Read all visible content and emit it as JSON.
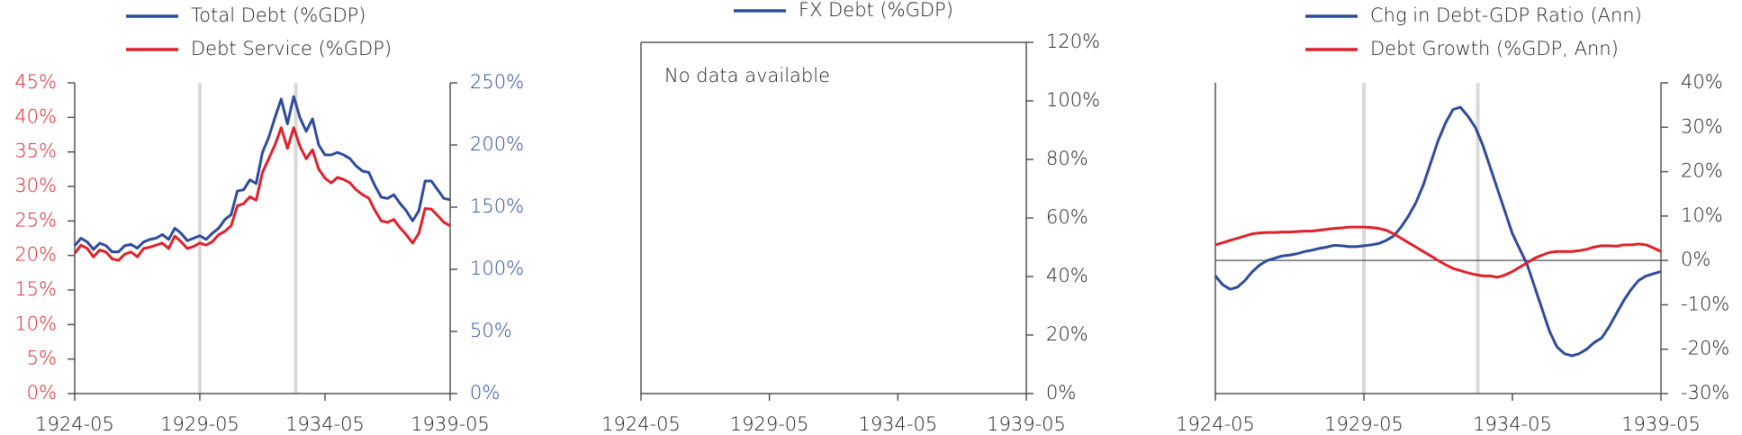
{
  "chart_data": [
    {
      "type": "line",
      "x": [
        "1924-05",
        "1924-08",
        "1924-11",
        "1925-02",
        "1925-05",
        "1925-08",
        "1925-11",
        "1926-02",
        "1926-05",
        "1926-08",
        "1926-11",
        "1927-02",
        "1927-05",
        "1927-08",
        "1927-11",
        "1928-02",
        "1928-05",
        "1928-08",
        "1928-11",
        "1929-02",
        "1929-05",
        "1929-08",
        "1929-11",
        "1930-02",
        "1930-05",
        "1930-08",
        "1930-11",
        "1931-02",
        "1931-05",
        "1931-08",
        "1931-11",
        "1932-02",
        "1932-05",
        "1932-08",
        "1932-11",
        "1933-02",
        "1933-05",
        "1933-08",
        "1933-11",
        "1934-02",
        "1934-05",
        "1934-08",
        "1934-11",
        "1935-02",
        "1935-05",
        "1935-08",
        "1935-11",
        "1936-02",
        "1936-05",
        "1936-08",
        "1936-11",
        "1937-02",
        "1937-05",
        "1937-08",
        "1937-11",
        "1938-02",
        "1938-05",
        "1938-08",
        "1938-11",
        "1939-02",
        "1939-05"
      ],
      "series": [
        {
          "name": "Total Debt (%GDP)",
          "color": "#2e4a9e",
          "axis": "y2",
          "values": [
            119,
            125,
            122,
            116,
            121,
            119,
            114,
            114,
            119,
            120,
            117,
            122,
            124,
            125,
            128,
            124,
            133,
            129,
            123,
            125,
            127,
            124,
            129,
            133,
            140,
            144,
            163,
            164,
            172,
            169,
            194,
            206,
            222,
            237,
            217,
            239,
            222,
            211,
            221,
            200,
            192,
            192,
            194,
            192,
            189,
            183,
            179,
            178,
            167,
            158,
            157,
            160,
            153,
            147,
            139,
            147,
            171,
            171,
            164,
            157,
            156
          ]
        },
        {
          "name": "Debt Service (%GDP)",
          "color": "#e0202a",
          "axis": "y",
          "values": [
            20.3,
            21.5,
            21,
            19.8,
            20.8,
            20.5,
            19.5,
            19.3,
            20.2,
            20.5,
            19.8,
            21,
            21.2,
            21.5,
            21.8,
            21,
            22.8,
            22,
            21,
            21.3,
            21.8,
            21.5,
            22,
            23,
            23.5,
            24.3,
            27.2,
            27.5,
            28.5,
            28,
            32,
            34,
            36,
            38.5,
            35.5,
            38.5,
            35.8,
            34,
            35.3,
            32.5,
            31.2,
            30.5,
            31.3,
            31,
            30.5,
            29.5,
            28.8,
            28.3,
            26.5,
            25,
            24.8,
            25.2,
            24,
            23,
            21.8,
            23.2,
            26.8,
            26.7,
            25.8,
            24.8,
            24.3
          ]
        }
      ],
      "xlim": [
        "1924-05",
        "1939-05"
      ],
      "xticks": [
        "1924-05",
        "1929-05",
        "1934-05",
        "1939-05"
      ],
      "ylim": [
        0,
        45
      ],
      "yticks": [
        {
          "value": 0,
          "label": "0%"
        },
        {
          "value": 5,
          "label": "5%"
        },
        {
          "value": 10,
          "label": "10%"
        },
        {
          "value": 15,
          "label": "15%"
        },
        {
          "value": 20,
          "label": "20%"
        },
        {
          "value": 25,
          "label": "25%"
        },
        {
          "value": 30,
          "label": "30%"
        },
        {
          "value": 35,
          "label": "35%"
        },
        {
          "value": 40,
          "label": "40%"
        },
        {
          "value": 45,
          "label": "45%"
        }
      ],
      "ytick_color": "#e0202a",
      "y2lim": [
        0,
        250
      ],
      "y2ticks": [
        {
          "value": 0,
          "label": "0%"
        },
        {
          "value": 50,
          "label": "50%"
        },
        {
          "value": 100,
          "label": "100%"
        },
        {
          "value": 150,
          "label": "150%"
        },
        {
          "value": 200,
          "label": "200%"
        },
        {
          "value": 250,
          "label": "250%"
        }
      ],
      "y2tick_color": "#2e4a9e",
      "vlines": [
        "1929-05",
        "1933-03"
      ]
    },
    {
      "type": "line",
      "x": [],
      "series": [
        {
          "name": "FX Debt (%GDP)",
          "color": "#2e4a9e",
          "axis": "y2",
          "values": []
        }
      ],
      "annotation": "No data available",
      "xlim": [
        "1924-05",
        "1939-05"
      ],
      "xticks": [
        "1924-05",
        "1929-05",
        "1934-05",
        "1939-05"
      ],
      "y2lim": [
        0,
        120
      ],
      "y2ticks": [
        {
          "value": 0,
          "label": "0%"
        },
        {
          "value": 20,
          "label": "20%"
        },
        {
          "value": 40,
          "label": "40%"
        },
        {
          "value": 60,
          "label": "60%"
        },
        {
          "value": 80,
          "label": "80%"
        },
        {
          "value": 100,
          "label": "100%"
        },
        {
          "value": 120,
          "label": "120%"
        }
      ],
      "y2tick_color": "#222222"
    },
    {
      "type": "line",
      "x": [
        "1924-05",
        "1924-08",
        "1924-11",
        "1925-02",
        "1925-05",
        "1925-08",
        "1925-11",
        "1926-02",
        "1926-05",
        "1926-08",
        "1926-11",
        "1927-02",
        "1927-05",
        "1927-08",
        "1927-11",
        "1928-02",
        "1928-05",
        "1928-08",
        "1928-11",
        "1929-02",
        "1929-05",
        "1929-08",
        "1929-11",
        "1930-02",
        "1930-05",
        "1930-08",
        "1930-11",
        "1931-02",
        "1931-05",
        "1931-08",
        "1931-11",
        "1932-02",
        "1932-05",
        "1932-08",
        "1932-11",
        "1933-02",
        "1933-05",
        "1933-08",
        "1933-11",
        "1934-02",
        "1934-05",
        "1934-08",
        "1934-11",
        "1935-02",
        "1935-05",
        "1935-08",
        "1935-11",
        "1936-02",
        "1936-05",
        "1936-08",
        "1936-11",
        "1937-02",
        "1937-05",
        "1937-08",
        "1937-11",
        "1938-02",
        "1938-05",
        "1938-08",
        "1938-11",
        "1939-02",
        "1939-05"
      ],
      "series": [
        {
          "name": "Chg in Debt-GDP Ratio (Ann)",
          "color": "#2e4a9e",
          "axis": "y2",
          "values": [
            -3.5,
            -5.5,
            -6.5,
            -6,
            -4.5,
            -2.5,
            -1,
            0,
            0.5,
            1,
            1.2,
            1.5,
            2,
            2.3,
            2.7,
            3,
            3.4,
            3.3,
            3.1,
            3.1,
            3.3,
            3.5,
            3.8,
            4.5,
            5.5,
            7.5,
            10,
            13,
            17,
            22,
            27,
            31,
            34,
            34.5,
            32.5,
            30,
            26,
            21,
            16,
            11,
            6,
            2.5,
            -1,
            -6,
            -11,
            -16,
            -19.5,
            -21,
            -21.5,
            -21,
            -20,
            -18.5,
            -17.5,
            -15,
            -12,
            -9,
            -6.5,
            -4.5,
            -3.5,
            -3,
            -2.5
          ]
        },
        {
          "name": "Debt Growth (%GDP, Ann)",
          "color": "#e0202a",
          "axis": "y2",
          "values": [
            3.5,
            4,
            4.5,
            5,
            5.5,
            6,
            6.2,
            6.3,
            6.3,
            6.4,
            6.4,
            6.5,
            6.6,
            6.6,
            6.8,
            7,
            7.2,
            7.3,
            7.5,
            7.5,
            7.5,
            7.4,
            7.2,
            6.8,
            6,
            5,
            4,
            3,
            2,
            1,
            0,
            -1,
            -1.8,
            -2.3,
            -2.8,
            -3.2,
            -3.5,
            -3.5,
            -3.8,
            -3.3,
            -2.5,
            -1.5,
            -0.5,
            0.5,
            1.2,
            1.8,
            2,
            2,
            2,
            2.2,
            2.5,
            3,
            3.3,
            3.3,
            3.2,
            3.5,
            3.5,
            3.7,
            3.5,
            2.8,
            2
          ]
        }
      ],
      "xlim": [
        "1924-05",
        "1939-05"
      ],
      "xticks": [
        "1924-05",
        "1929-05",
        "1934-05",
        "1939-05"
      ],
      "y2lim": [
        -30,
        40
      ],
      "y2ticks": [
        {
          "value": -30,
          "label": "-30%"
        },
        {
          "value": -20,
          "label": "-20%"
        },
        {
          "value": -10,
          "label": "-10%"
        },
        {
          "value": 0,
          "label": "0%"
        },
        {
          "value": 10,
          "label": "10%"
        },
        {
          "value": 20,
          "label": "20%"
        },
        {
          "value": 30,
          "label": "30%"
        },
        {
          "value": 40,
          "label": "40%"
        }
      ],
      "y2tick_color": "#222222",
      "zero_line": true,
      "vlines": [
        "1929-05",
        "1933-03"
      ]
    }
  ]
}
